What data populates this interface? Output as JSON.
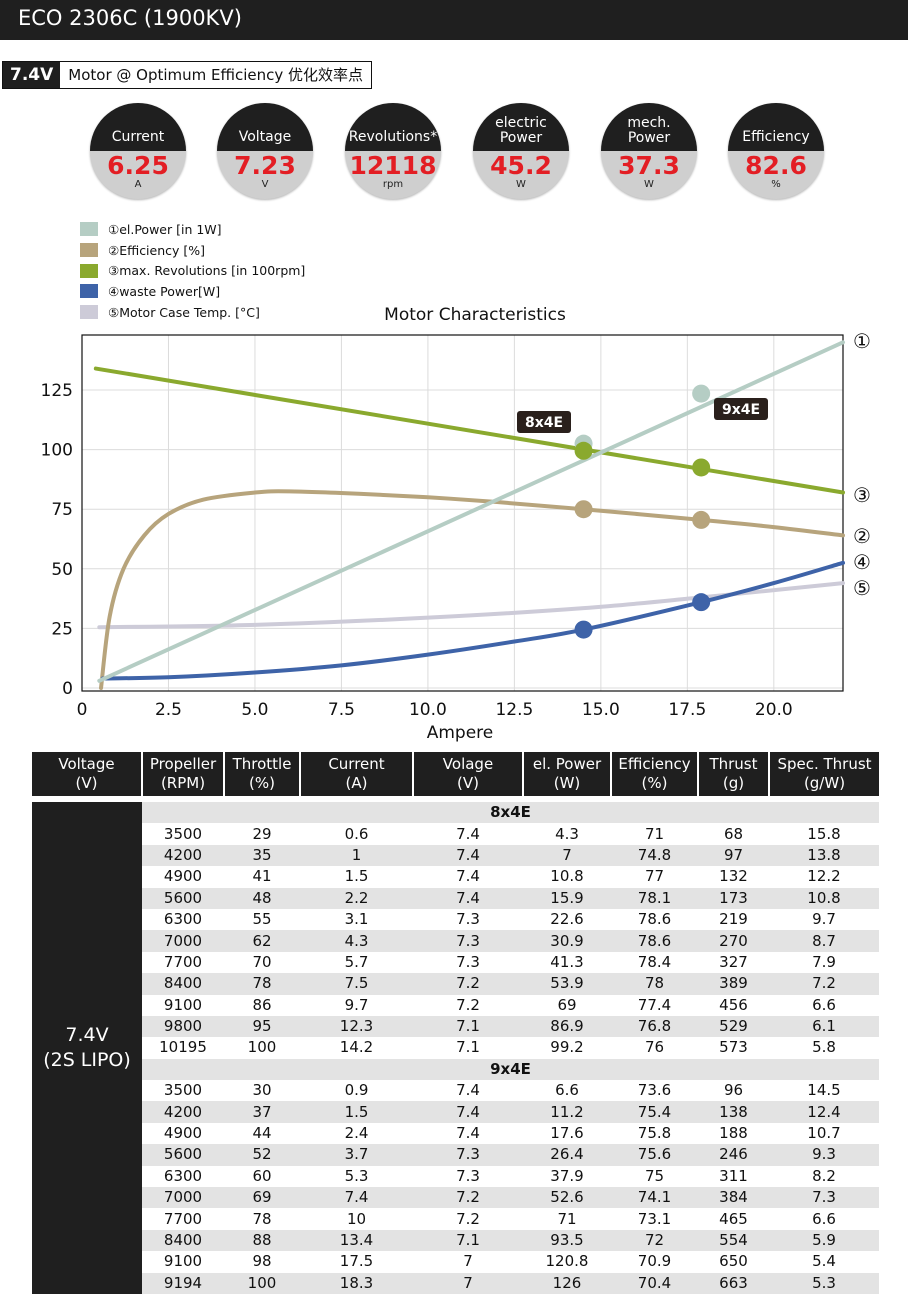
{
  "title": "ECO 2306C (1900KV)",
  "subtitle": {
    "voltage": "7.4V",
    "text": "Motor @ Optimum Efficiency  优化效率点"
  },
  "stats": [
    {
      "label": "Current",
      "value": "6.25",
      "unit": "A"
    },
    {
      "label": "Voltage",
      "value": "7.23",
      "unit": "V"
    },
    {
      "label": "Revolutions*",
      "value": "12118",
      "unit": "rpm"
    },
    {
      "label": "electric Power",
      "value": "45.2",
      "unit": "W"
    },
    {
      "label": "mech. Power",
      "value": "37.3",
      "unit": "W"
    },
    {
      "label": "Efficiency",
      "value": "82.6",
      "unit": "%"
    }
  ],
  "legend": [
    {
      "text": "①el.Power [in 1W]",
      "color": "#b5cdc4"
    },
    {
      "text": "②Efficiency [%]",
      "color": "#b7a47c"
    },
    {
      "text": "③max. Revolutions [in 100rpm]",
      "color": "#8aa92e"
    },
    {
      "text": "④waste Power[W]",
      "color": "#3e63a8"
    },
    {
      "text": "⑤Motor Case Temp. [°C]",
      "color": "#cdcbd8"
    }
  ],
  "chart_data": {
    "type": "line",
    "title": "Motor Characteristics",
    "xlabel": "Ampere",
    "ylabel": "",
    "xlim": [
      0,
      22
    ],
    "ylim": [
      0,
      145
    ],
    "xticks": [
      0,
      2.5,
      5,
      7.5,
      10,
      12.5,
      15,
      17.5,
      20
    ],
    "xtick_labels": [
      "0",
      "2.5",
      "5.0",
      "7.5",
      "10.0",
      "12.5",
      "15.0",
      "17.5",
      "20.0"
    ],
    "yticks": [
      0,
      25,
      50,
      75,
      100,
      125
    ],
    "grid": true,
    "series": [
      {
        "name": "①",
        "color": "#b5cdc4",
        "x": [
          0.5,
          22
        ],
        "y": [
          3,
          145
        ]
      },
      {
        "name": "②",
        "color": "#b7a47c",
        "x": [
          0.55,
          0.8,
          1.2,
          1.8,
          2.5,
          3.5,
          5,
          6,
          8,
          10,
          12,
          14.5,
          17.9,
          20,
          22
        ],
        "y": [
          0,
          30,
          50,
          64,
          73,
          79,
          82,
          82.5,
          81.5,
          80,
          78,
          75,
          70.5,
          67.5,
          64
        ]
      },
      {
        "name": "③",
        "color": "#8aa92e",
        "x": [
          0.4,
          22
        ],
        "y": [
          134,
          82
        ]
      },
      {
        "name": "④",
        "color": "#3e63a8",
        "x": [
          0.6,
          2.5,
          5,
          7.5,
          10,
          12.5,
          14.5,
          17.9,
          20,
          22
        ],
        "y": [
          4,
          4.5,
          6.5,
          9.5,
          14,
          19.5,
          24.5,
          36,
          44,
          52.5
        ]
      },
      {
        "name": "⑤",
        "color": "#cdcbd8",
        "x": [
          0.5,
          5,
          10,
          14.5,
          17.9,
          22
        ],
        "y": [
          25.5,
          26.5,
          29.5,
          33.5,
          38,
          44
        ]
      }
    ],
    "markers": [
      {
        "label": "8x4E",
        "x": 14.5,
        "points": [
          {
            "series": 0,
            "y": 102.5
          },
          {
            "series": 2,
            "y": 99.5
          },
          {
            "series": 1,
            "y": 75
          },
          {
            "series": 3,
            "y": 24.5
          }
        ]
      },
      {
        "label": "9x4E",
        "x": 17.9,
        "points": [
          {
            "series": 0,
            "y": 123.5
          },
          {
            "series": 2,
            "y": 92.5
          },
          {
            "series": 1,
            "y": 70.5
          },
          {
            "series": 3,
            "y": 36
          }
        ]
      }
    ],
    "series_labels_right": [
      "①",
      "③",
      "②",
      "④",
      "⑤"
    ]
  },
  "table": {
    "headers": [
      "Voltage\n(V)",
      "Propeller\n(RPM)",
      "Throttle\n(%)",
      "Current\n(A)",
      "Volage\n(V)",
      "el. Power\n(W)",
      "Efficiency\n(%)",
      "Thrust\n(g)",
      "Spec. Thrust\n(g/W)"
    ],
    "voltage_label": "7.4V\n(2S LIPO)",
    "groups": [
      {
        "name": "8x4E",
        "rows": [
          [
            "3500",
            "29",
            "0.6",
            "7.4",
            "4.3",
            "71",
            "68",
            "15.8"
          ],
          [
            "4200",
            "35",
            "1",
            "7.4",
            "7",
            "74.8",
            "97",
            "13.8"
          ],
          [
            "4900",
            "41",
            "1.5",
            "7.4",
            "10.8",
            "77",
            "132",
            "12.2"
          ],
          [
            "5600",
            "48",
            "2.2",
            "7.4",
            "15.9",
            "78.1",
            "173",
            "10.8"
          ],
          [
            "6300",
            "55",
            "3.1",
            "7.3",
            "22.6",
            "78.6",
            "219",
            "9.7"
          ],
          [
            "7000",
            "62",
            "4.3",
            "7.3",
            "30.9",
            "78.6",
            "270",
            "8.7"
          ],
          [
            "7700",
            "70",
            "5.7",
            "7.3",
            "41.3",
            "78.4",
            "327",
            "7.9"
          ],
          [
            "8400",
            "78",
            "7.5",
            "7.2",
            "53.9",
            "78",
            "389",
            "7.2"
          ],
          [
            "9100",
            "86",
            "9.7",
            "7.2",
            "69",
            "77.4",
            "456",
            "6.6"
          ],
          [
            "9800",
            "95",
            "12.3",
            "7.1",
            "86.9",
            "76.8",
            "529",
            "6.1"
          ],
          [
            "10195",
            "100",
            "14.2",
            "7.1",
            "99.2",
            "76",
            "573",
            "5.8"
          ]
        ]
      },
      {
        "name": "9x4E",
        "rows": [
          [
            "3500",
            "30",
            "0.9",
            "7.4",
            "6.6",
            "73.6",
            "96",
            "14.5"
          ],
          [
            "4200",
            "37",
            "1.5",
            "7.4",
            "11.2",
            "75.4",
            "138",
            "12.4"
          ],
          [
            "4900",
            "44",
            "2.4",
            "7.4",
            "17.6",
            "75.8",
            "188",
            "10.7"
          ],
          [
            "5600",
            "52",
            "3.7",
            "7.3",
            "26.4",
            "75.6",
            "246",
            "9.3"
          ],
          [
            "6300",
            "60",
            "5.3",
            "7.3",
            "37.9",
            "75",
            "311",
            "8.2"
          ],
          [
            "7000",
            "69",
            "7.4",
            "7.2",
            "52.6",
            "74.1",
            "384",
            "7.3"
          ],
          [
            "7700",
            "78",
            "10",
            "7.2",
            "71",
            "73.1",
            "465",
            "6.6"
          ],
          [
            "8400",
            "88",
            "13.4",
            "7.1",
            "93.5",
            "72",
            "554",
            "5.9"
          ],
          [
            "9100",
            "98",
            "17.5",
            "7",
            "120.8",
            "70.9",
            "650",
            "5.4"
          ],
          [
            "9194",
            "100",
            "18.3",
            "7",
            "126",
            "70.4",
            "663",
            "5.3"
          ]
        ]
      }
    ]
  }
}
